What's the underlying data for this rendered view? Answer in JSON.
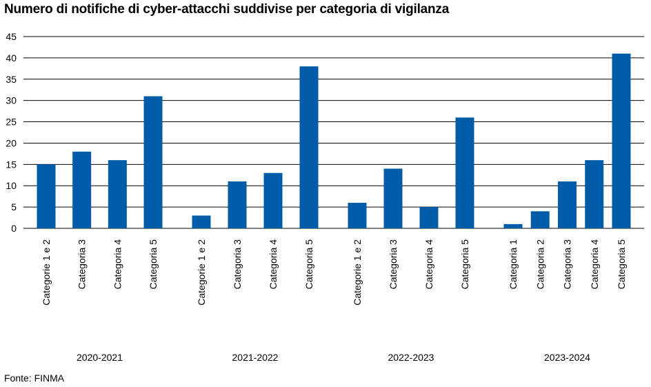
{
  "chart_data": {
    "type": "bar",
    "title": "Numero di notifiche di cyber-attacchi suddivise per categoria di vigilanza",
    "source": "Fonte: FINMA",
    "ylim": [
      0,
      45
    ],
    "yticks": [
      0,
      5,
      10,
      15,
      20,
      25,
      30,
      35,
      40,
      45
    ],
    "grid": true,
    "color": "#005CA9",
    "groups": [
      {
        "name": "2020-2021",
        "categories": [
          "Categorie 1 e 2",
          "Categoria 3",
          "Categoria 4",
          "Categoria 5"
        ],
        "values": [
          15,
          18,
          16,
          31
        ]
      },
      {
        "name": "2021-2022",
        "categories": [
          "Categorie 1 e 2",
          "Categoria 3",
          "Categoria 4",
          "Categoria 5"
        ],
        "values": [
          3,
          11,
          13,
          38
        ]
      },
      {
        "name": "2022-2023",
        "categories": [
          "Categorie 1 e 2",
          "Categoria 3",
          "Categoria 4",
          "Categoria 5"
        ],
        "values": [
          6,
          14,
          5,
          26
        ]
      },
      {
        "name": "2023-2024",
        "categories": [
          "Categoria 1",
          "Categoria 2",
          "Categoria 3",
          "Categoria 4",
          "Categoria 5"
        ],
        "values": [
          1,
          4,
          11,
          16,
          41
        ]
      }
    ]
  }
}
